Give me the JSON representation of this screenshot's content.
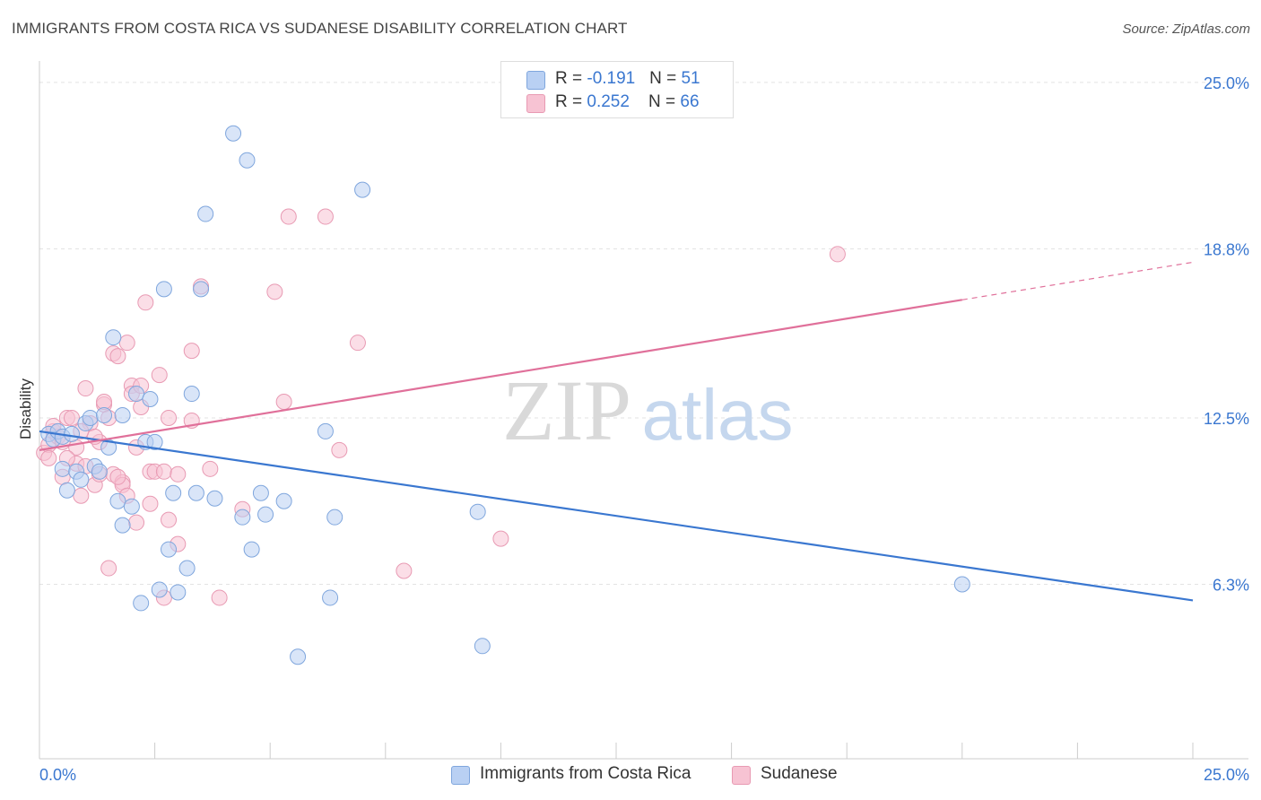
{
  "title": "IMMIGRANTS FROM COSTA RICA VS SUDANESE DISABILITY CORRELATION CHART",
  "source": "Source: ZipAtlas.com",
  "watermark": {
    "zip": "ZIP",
    "atlas": "atlas"
  },
  "legend_top": [
    {
      "r_label": "R = ",
      "r_value": "-0.191",
      "n_label": "N = ",
      "n_value": "51"
    },
    {
      "r_label": "R = ",
      "r_value": "0.252",
      "n_label": "N = ",
      "n_value": "66"
    }
  ],
  "chart_data": {
    "type": "scatter",
    "title": "IMMIGRANTS FROM COSTA RICA VS SUDANESE DISABILITY CORRELATION CHART",
    "xlabel": "",
    "ylabel": "Disability",
    "xlim": [
      0,
      25
    ],
    "ylim": [
      0,
      26
    ],
    "x_tick_labels": [
      "0.0%",
      "25.0%"
    ],
    "y_ticks": [
      6.3,
      12.5,
      18.8,
      25.0
    ],
    "y_tick_labels": [
      "6.3%",
      "12.5%",
      "18.8%",
      "25.0%"
    ],
    "grid": true,
    "legend_position": "bottom-center",
    "colors": {
      "blue": "#3a77d0",
      "pink": "#e0709a",
      "blue_fill": "#b9d0f3",
      "pink_fill": "#f7c3d3"
    },
    "series": [
      {
        "name": "Immigrants from Costa Rica",
        "color": "#3a77d0",
        "r": -0.191,
        "n": 51,
        "trend": {
          "x": [
            0,
            25
          ],
          "y": [
            12.0,
            5.7
          ],
          "solid_to": 25
        },
        "points": [
          [
            0.2,
            11.9
          ],
          [
            0.3,
            11.7
          ],
          [
            0.4,
            12.0
          ],
          [
            0.5,
            11.8
          ],
          [
            0.5,
            10.6
          ],
          [
            0.6,
            9.8
          ],
          [
            0.7,
            11.9
          ],
          [
            0.8,
            10.5
          ],
          [
            0.9,
            10.2
          ],
          [
            1.0,
            12.3
          ],
          [
            1.1,
            12.5
          ],
          [
            1.2,
            10.7
          ],
          [
            1.3,
            10.5
          ],
          [
            1.4,
            12.6
          ],
          [
            1.5,
            11.4
          ],
          [
            1.6,
            15.5
          ],
          [
            1.7,
            9.4
          ],
          [
            1.8,
            12.6
          ],
          [
            1.8,
            8.5
          ],
          [
            2.0,
            9.2
          ],
          [
            2.1,
            13.4
          ],
          [
            2.2,
            5.6
          ],
          [
            2.3,
            11.6
          ],
          [
            2.4,
            13.2
          ],
          [
            2.5,
            11.6
          ],
          [
            2.6,
            6.1
          ],
          [
            2.7,
            17.3
          ],
          [
            2.8,
            7.6
          ],
          [
            2.9,
            9.7
          ],
          [
            3.0,
            6.0
          ],
          [
            3.2,
            6.9
          ],
          [
            3.3,
            13.4
          ],
          [
            3.4,
            9.7
          ],
          [
            3.5,
            17.3
          ],
          [
            3.6,
            20.1
          ],
          [
            3.8,
            9.5
          ],
          [
            4.2,
            23.1
          ],
          [
            4.4,
            8.8
          ],
          [
            4.5,
            22.1
          ],
          [
            4.6,
            7.6
          ],
          [
            4.8,
            9.7
          ],
          [
            4.9,
            8.9
          ],
          [
            5.3,
            9.4
          ],
          [
            5.6,
            3.6
          ],
          [
            6.2,
            12.0
          ],
          [
            6.3,
            5.8
          ],
          [
            6.4,
            8.8
          ],
          [
            7.0,
            21.0
          ],
          [
            9.5,
            9.0
          ],
          [
            9.6,
            4.0
          ],
          [
            20.0,
            6.3
          ]
        ]
      },
      {
        "name": "Sudanese",
        "color": "#e0709a",
        "r": 0.252,
        "n": 66,
        "trend": {
          "x": [
            0,
            25
          ],
          "y": [
            11.3,
            18.3
          ],
          "solid_to": 20
        },
        "points": [
          [
            0.1,
            11.2
          ],
          [
            0.2,
            11.5
          ],
          [
            0.2,
            11.0
          ],
          [
            0.3,
            12.0
          ],
          [
            0.4,
            11.8
          ],
          [
            0.5,
            11.6
          ],
          [
            0.5,
            10.3
          ],
          [
            0.6,
            12.5
          ],
          [
            0.7,
            12.5
          ],
          [
            0.8,
            10.8
          ],
          [
            0.8,
            11.4
          ],
          [
            0.9,
            9.6
          ],
          [
            1.0,
            10.7
          ],
          [
            1.0,
            13.6
          ],
          [
            1.1,
            12.3
          ],
          [
            1.2,
            10.0
          ],
          [
            1.3,
            11.6
          ],
          [
            1.3,
            10.4
          ],
          [
            1.4,
            13.0
          ],
          [
            1.4,
            13.1
          ],
          [
            1.5,
            12.5
          ],
          [
            1.5,
            6.9
          ],
          [
            1.6,
            10.4
          ],
          [
            1.6,
            14.9
          ],
          [
            1.7,
            14.8
          ],
          [
            1.8,
            10.1
          ],
          [
            1.8,
            10.0
          ],
          [
            1.9,
            9.6
          ],
          [
            1.9,
            15.3
          ],
          [
            2.0,
            13.7
          ],
          [
            2.0,
            13.4
          ],
          [
            2.1,
            11.4
          ],
          [
            2.1,
            8.6
          ],
          [
            2.2,
            12.9
          ],
          [
            2.2,
            13.7
          ],
          [
            2.3,
            16.8
          ],
          [
            2.4,
            10.5
          ],
          [
            2.5,
            10.5
          ],
          [
            2.6,
            14.1
          ],
          [
            2.7,
            5.8
          ],
          [
            2.7,
            10.5
          ],
          [
            2.8,
            8.7
          ],
          [
            2.8,
            12.5
          ],
          [
            3.0,
            7.8
          ],
          [
            3.0,
            10.4
          ],
          [
            3.3,
            15.0
          ],
          [
            3.3,
            12.4
          ],
          [
            3.5,
            17.4
          ],
          [
            3.7,
            10.6
          ],
          [
            3.9,
            5.8
          ],
          [
            4.4,
            9.1
          ],
          [
            5.1,
            17.2
          ],
          [
            5.3,
            13.1
          ],
          [
            5.4,
            20.0
          ],
          [
            6.2,
            20.0
          ],
          [
            6.5,
            11.3
          ],
          [
            6.9,
            15.3
          ],
          [
            7.9,
            6.8
          ],
          [
            10.0,
            8.0
          ],
          [
            17.3,
            18.6
          ],
          [
            0.3,
            12.2
          ],
          [
            1.2,
            11.8
          ],
          [
            0.9,
            12.0
          ],
          [
            2.4,
            9.3
          ],
          [
            0.6,
            11.0
          ],
          [
            1.7,
            10.3
          ]
        ]
      }
    ]
  }
}
